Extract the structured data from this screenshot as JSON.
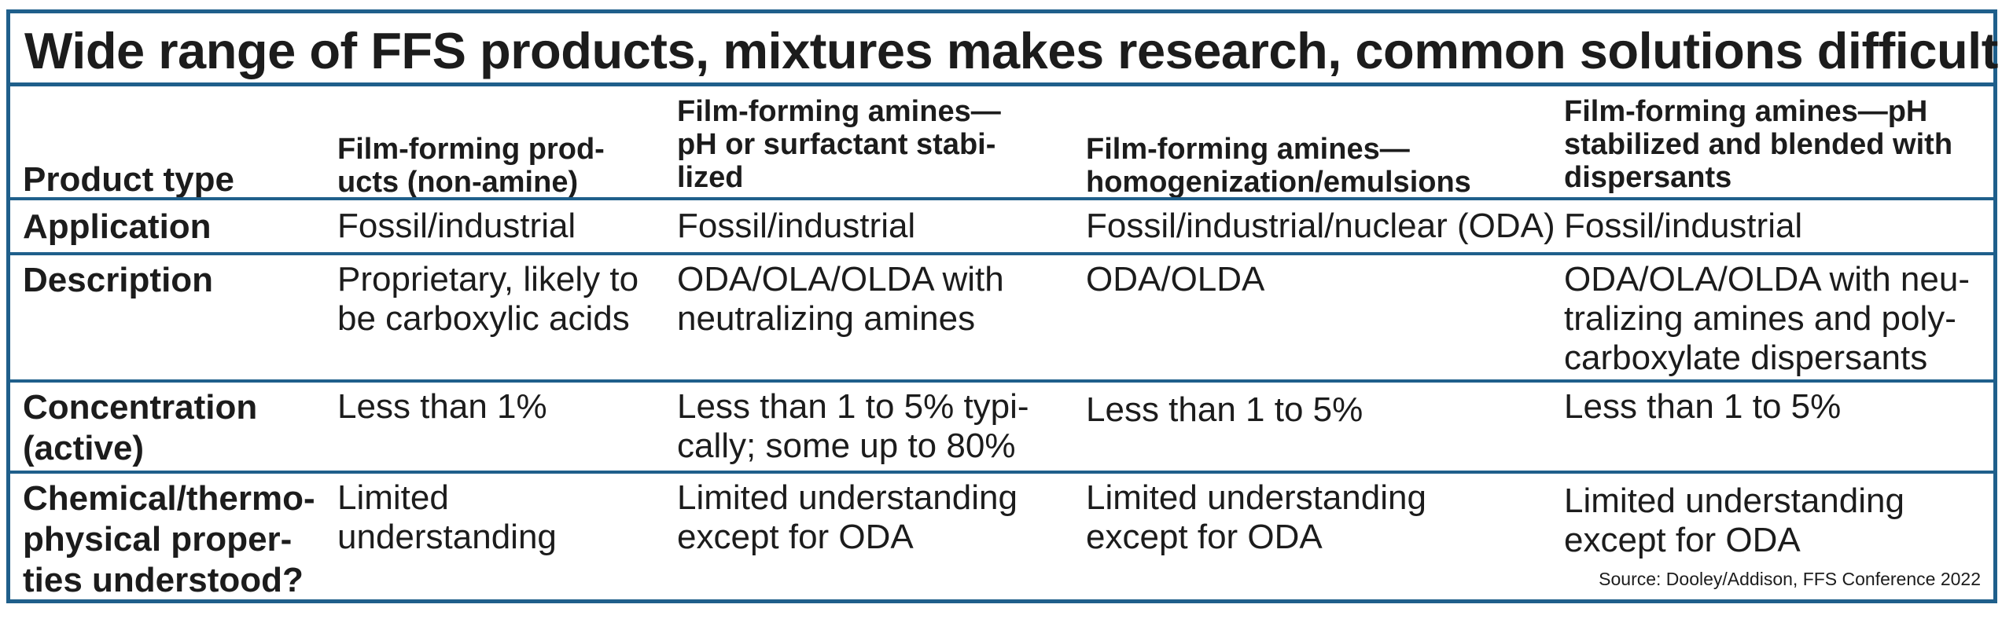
{
  "title": "Wide range of FFS products, mixtures makes research, common solutions difficult",
  "header": {
    "row_label": "Product type",
    "columns": [
      "Film-forming prod-\nucts (non-amine)",
      "Film-forming amines—\npH or surfactant stabi-\nlized",
      "Film-forming amines—\nhomogenization/emulsions",
      "Film-forming amines—pH\nstabilized and blended with\ndispersants"
    ]
  },
  "rows": [
    {
      "label": "Application",
      "cells": [
        "Fossil/industrial",
        "Fossil/industrial",
        "Fossil/industrial/nuclear (ODA)",
        "Fossil/industrial"
      ]
    },
    {
      "label": "Description",
      "cells": [
        "Proprietary, likely to\nbe carboxylic acids",
        "ODA/OLA/OLDA with\nneutralizing amines",
        "ODA/OLDA",
        "ODA/OLA/OLDA with neu-\ntralizing amines and poly-\ncarboxylate dispersants"
      ]
    },
    {
      "label": "Concentration\n(active)",
      "cells": [
        "Less than 1%",
        "Less than 1 to 5% typi-\ncally; some up to 80%",
        "Less than 1 to 5%",
        "Less than 1 to 5%"
      ]
    },
    {
      "label": "Chemical/thermo-\nphysical proper-\nties understood?",
      "cells": [
        "Limited\nunderstanding",
        "Limited understanding\nexcept for ODA",
        "Limited understanding\nexcept for ODA",
        "Limited understanding\nexcept for ODA"
      ]
    }
  ],
  "source": "Source: Dooley/Addison, FFS Conference 2022",
  "colors": {
    "border": "#1f5f8b",
    "text": "#1c1c1c"
  }
}
